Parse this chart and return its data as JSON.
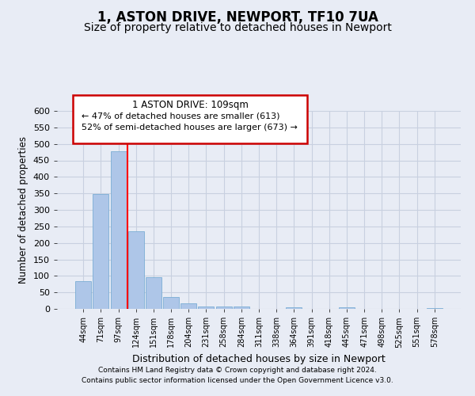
{
  "title": "1, ASTON DRIVE, NEWPORT, TF10 7UA",
  "subtitle": "Size of property relative to detached houses in Newport",
  "xlabel": "Distribution of detached houses by size in Newport",
  "ylabel": "Number of detached properties",
  "categories": [
    "44sqm",
    "71sqm",
    "97sqm",
    "124sqm",
    "151sqm",
    "178sqm",
    "204sqm",
    "231sqm",
    "258sqm",
    "284sqm",
    "311sqm",
    "338sqm",
    "364sqm",
    "391sqm",
    "418sqm",
    "445sqm",
    "471sqm",
    "498sqm",
    "525sqm",
    "551sqm",
    "578sqm"
  ],
  "values": [
    83,
    348,
    478,
    236,
    97,
    35,
    18,
    8,
    7,
    7,
    0,
    0,
    5,
    0,
    0,
    5,
    0,
    0,
    0,
    0,
    3
  ],
  "bar_color": "#aec6e8",
  "bar_edge_color": "#7badd4",
  "marker_label": "1 ASTON DRIVE: 109sqm",
  "arrow_left_text": "← 47% of detached houses are smaller (613)",
  "arrow_right_text": "52% of semi-detached houses are larger (673) →",
  "footnote1": "Contains HM Land Registry data © Crown copyright and database right 2024.",
  "footnote2": "Contains public sector information licensed under the Open Government Licence v3.0.",
  "ylim": [
    0,
    600
  ],
  "yticks": [
    0,
    50,
    100,
    150,
    200,
    250,
    300,
    350,
    400,
    450,
    500,
    550,
    600
  ],
  "background_color": "#e8ecf5",
  "plot_bg_color": "#e8ecf5",
  "grid_color": "#c8d0e0",
  "box_edge_color": "#cc0000",
  "red_line_x": 2.5,
  "title_fontsize": 12,
  "subtitle_fontsize": 10
}
